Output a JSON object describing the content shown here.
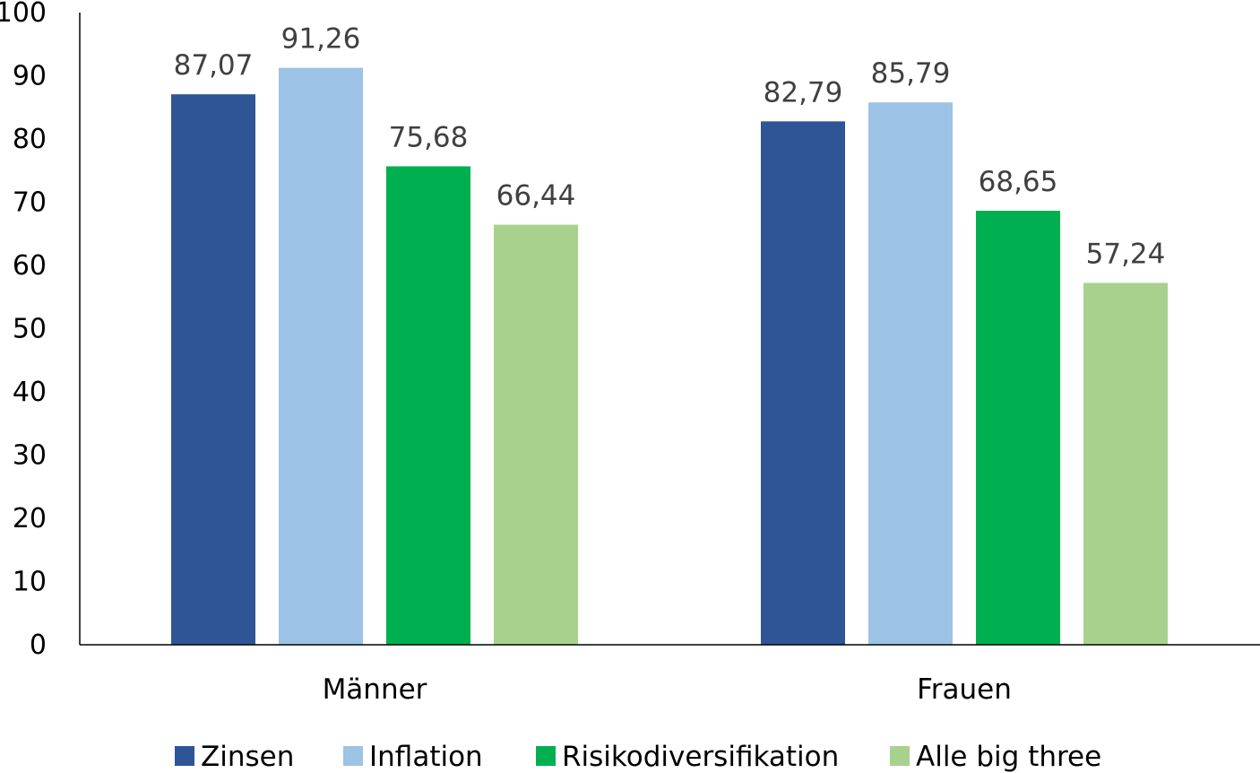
{
  "chart_data": {
    "type": "bar",
    "categories": [
      "Männer",
      "Frauen"
    ],
    "series": [
      {
        "name": "Zinsen",
        "values": [
          87.07,
          82.79
        ],
        "labels": [
          "87,07",
          "82,79"
        ],
        "color": "#2F5597"
      },
      {
        "name": "Inflation",
        "values": [
          91.26,
          85.79
        ],
        "labels": [
          "91,26",
          "85,79"
        ],
        "color": "#9DC3E6"
      },
      {
        "name": "Risikodiversifikation",
        "values": [
          75.68,
          68.65
        ],
        "labels": [
          "75,68",
          "68,65"
        ],
        "color": "#00B050"
      },
      {
        "name": "Alle big three",
        "values": [
          66.44,
          57.24
        ],
        "labels": [
          "66,44",
          "57,24"
        ],
        "color": "#A9D18E"
      }
    ],
    "yticks": [
      "0",
      "10",
      "20",
      "30",
      "40",
      "50",
      "60",
      "70",
      "80",
      "90",
      "100"
    ],
    "ylim": [
      0,
      100
    ],
    "title": "",
    "xlabel": "",
    "ylabel": "",
    "grid": false,
    "legend_position": "bottom"
  }
}
